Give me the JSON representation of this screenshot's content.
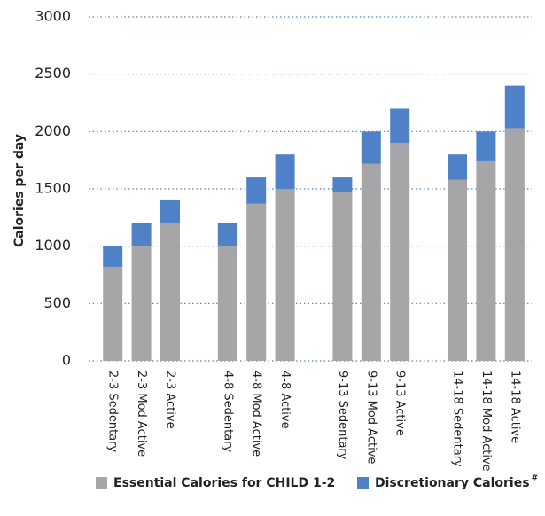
{
  "chart_data": {
    "type": "stacked_bar",
    "y_axis_label": "Calories per day",
    "categories": [
      "2-3 Sedentary",
      "2-3 Mod Active",
      "2-3  Active",
      null,
      "4-8 Sedentary",
      "4-8 Mod Active",
      "4-8  Active",
      null,
      "9-13  Sedentary",
      "9-13 Mod Active",
      "9-13  Active",
      null,
      "14-18 Sedentary",
      "14-18 Mod Active",
      "14-18 Active"
    ],
    "series": [
      {
        "name": "Essential Calories for CHILD 1-2",
        "color": "#a6a6a8",
        "values": [
          820,
          1000,
          1200,
          null,
          1000,
          1370,
          1500,
          null,
          1470,
          1720,
          1900,
          null,
          1580,
          1740,
          2030
        ]
      },
      {
        "name": "Discretionary Calories",
        "color": "#4f81c7",
        "values": [
          180,
          200,
          200,
          null,
          200,
          230,
          300,
          null,
          130,
          280,
          300,
          null,
          220,
          260,
          370
        ]
      }
    ],
    "legend_superscript": "#",
    "ylim": [
      0,
      3000
    ],
    "yticks": [
      0,
      500,
      1000,
      1500,
      2000,
      2500,
      3000
    ],
    "grid": true
  }
}
